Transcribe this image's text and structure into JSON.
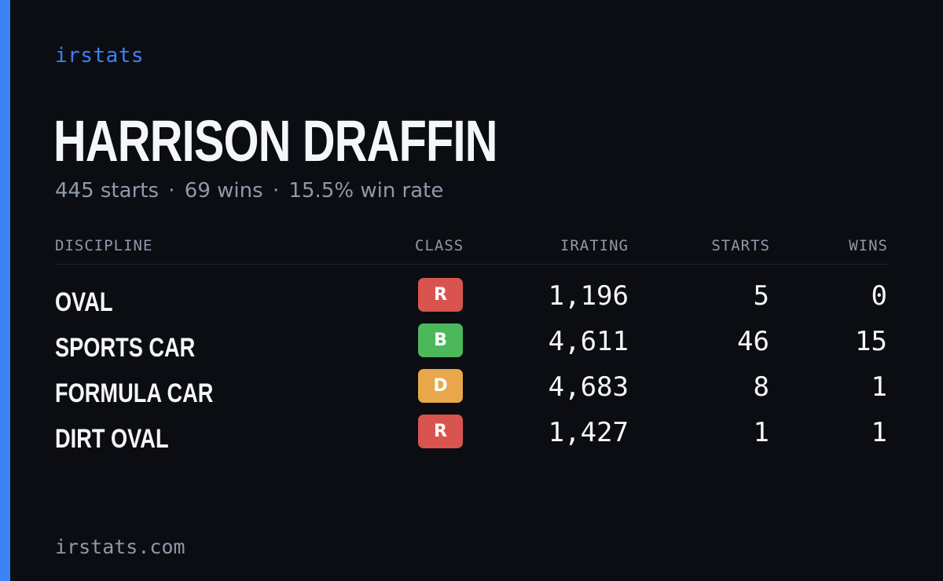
{
  "brand": {
    "name": "irstats",
    "accent_color": "#3b82f6"
  },
  "driver": {
    "name": "HARRISON DRAFFIN",
    "summary": {
      "starts": "445 starts",
      "wins": "69 wins",
      "win_rate": "15.5% win rate",
      "separator": "·"
    }
  },
  "table": {
    "headers": {
      "discipline": "DISCIPLINE",
      "class": "CLASS",
      "irating": "IRATING",
      "starts": "STARTS",
      "wins": "WINS"
    },
    "rows": [
      {
        "discipline": "OVAL",
        "class": "R",
        "class_color": "#d9534f",
        "irating": "1,196",
        "starts": "5",
        "wins": "0"
      },
      {
        "discipline": "SPORTS CAR",
        "class": "B",
        "class_color": "#4cb85c",
        "irating": "4,611",
        "starts": "46",
        "wins": "15"
      },
      {
        "discipline": "FORMULA CAR",
        "class": "D",
        "class_color": "#e8a84a",
        "irating": "4,683",
        "starts": "8",
        "wins": "1"
      },
      {
        "discipline": "DIRT OVAL",
        "class": "R",
        "class_color": "#d9534f",
        "irating": "1,427",
        "starts": "1",
        "wins": "1"
      }
    ]
  },
  "footer": {
    "site": "irstats.com"
  }
}
